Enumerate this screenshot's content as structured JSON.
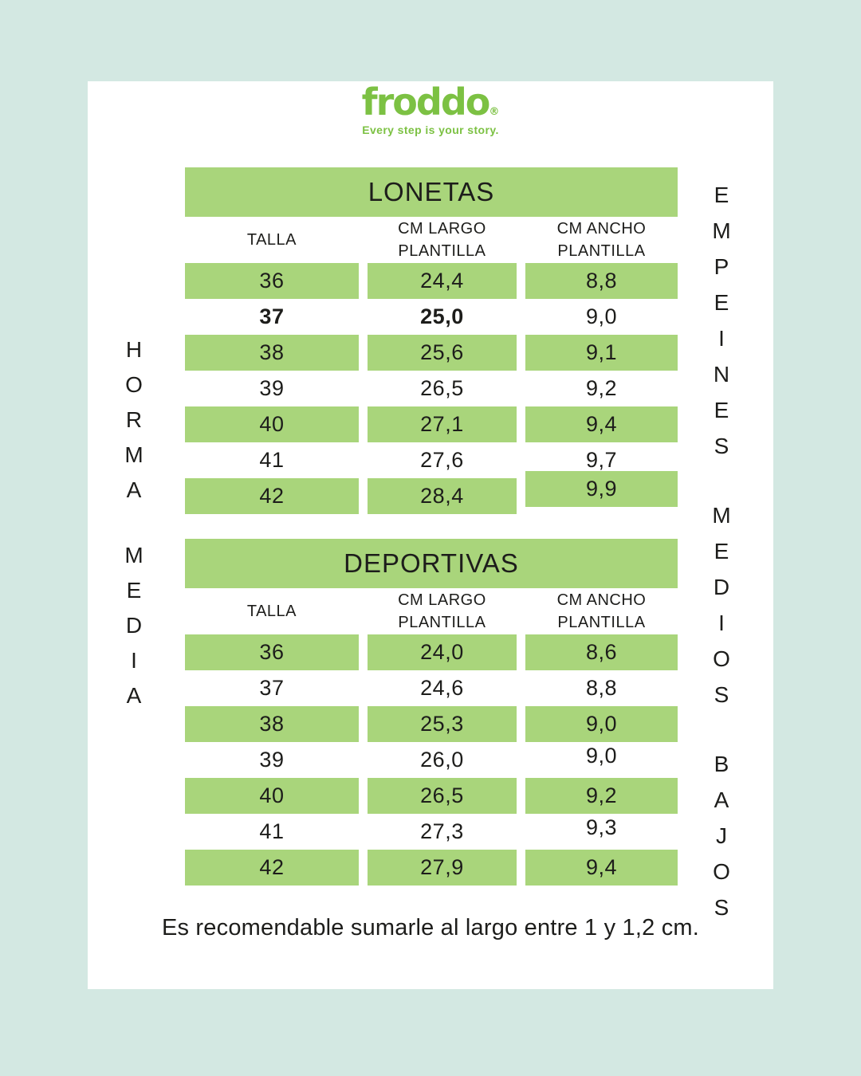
{
  "colors": {
    "page_bg": "#d3e8e2",
    "card_bg": "#ffffff",
    "cell_green": "#a9d57b",
    "brand_green": "#7cc143",
    "text": "#1d1d1b"
  },
  "logo": {
    "brand": "froddo",
    "registered": "®",
    "tagline": "Every step is your story."
  },
  "side_labels": {
    "left": [
      "HORMA",
      "MEDIA"
    ],
    "right": [
      "EMPEINES",
      "MEDIOS",
      "BAJOS"
    ]
  },
  "tables": [
    {
      "title": "LONETAS",
      "columns": {
        "talla": "TALLA",
        "largo": [
          "CM LARGO",
          "PLANTILLA"
        ],
        "ancho": [
          "CM ANCHO",
          "PLANTILLA"
        ]
      },
      "rows": [
        {
          "talla": "36",
          "largo": "24,4",
          "ancho": "8,8"
        },
        {
          "talla": "37",
          "largo": "25,0",
          "ancho": "9,0"
        },
        {
          "talla": "38",
          "largo": "25,6",
          "ancho": "9,1"
        },
        {
          "talla": "39",
          "largo": "26,5",
          "ancho": "9,2"
        },
        {
          "talla": "40",
          "largo": "27,1",
          "ancho": "9,4"
        },
        {
          "talla": "41",
          "largo": "27,6",
          "ancho": "9,7"
        },
        {
          "talla": "42",
          "largo": "28,4",
          "ancho": "9,9"
        }
      ]
    },
    {
      "title": "DEPORTIVAS",
      "columns": {
        "talla": "TALLA",
        "largo": [
          "CM LARGO",
          "PLANTILLA"
        ],
        "ancho": [
          "CM ANCHO",
          "PLANTILLA"
        ]
      },
      "rows": [
        {
          "talla": "36",
          "largo": "24,0",
          "ancho": "8,6"
        },
        {
          "talla": "37",
          "largo": "24,6",
          "ancho": "8,8"
        },
        {
          "talla": "38",
          "largo": "25,3",
          "ancho": "9,0"
        },
        {
          "talla": "39",
          "largo": "26,0",
          "ancho": "9,0"
        },
        {
          "talla": "40",
          "largo": "26,5",
          "ancho": "9,2"
        },
        {
          "talla": "41",
          "largo": "27,3",
          "ancho": "9,3"
        },
        {
          "talla": "42",
          "largo": "27,9",
          "ancho": "9,4"
        }
      ]
    }
  ],
  "footnote": "Es recomendable sumarle al largo entre 1 y 1,2 cm."
}
